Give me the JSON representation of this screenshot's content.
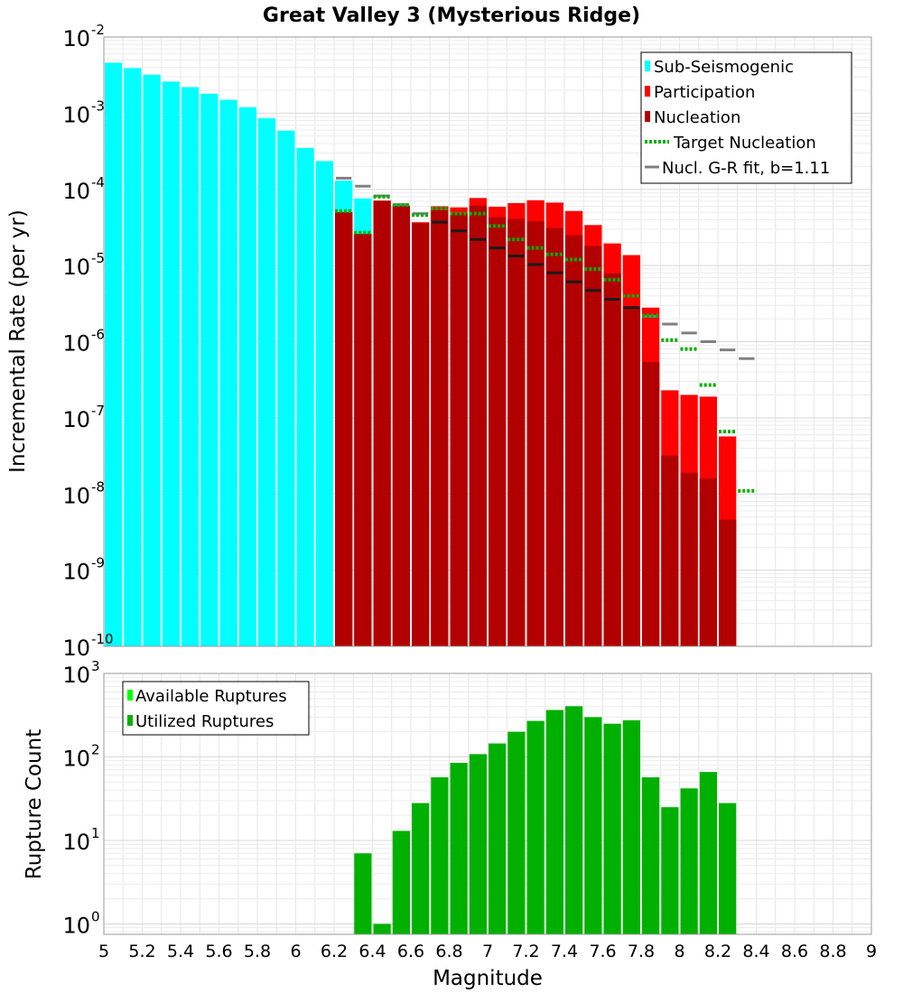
{
  "title": "Great Valley 3 (Mysterious Ridge)",
  "colors": {
    "sub_seismogenic": "#00ffff",
    "participation": "#ff0000",
    "nucleation": "#b20000",
    "target_nucleation": "#00b000",
    "gr_fit": "#808080",
    "available_ruptures": "#00ff00",
    "utilized_ruptures": "#00b000"
  },
  "chart_data": [
    {
      "type": "bar",
      "name": "rates",
      "title": "Great Valley 3 (Mysterious Ridge)",
      "ylabel": "Incremental Rate (per yr)",
      "xlabel": "",
      "yscale": "log",
      "xlim": [
        5,
        9
      ],
      "ylim": [
        1e-10,
        0.01
      ],
      "ytick_exponents": [
        -2,
        -3,
        -4,
        -5,
        -6,
        -7,
        -8,
        -9,
        -10
      ],
      "legend": {
        "position": "top-right",
        "entries": [
          "Sub-Seismogenic",
          "Participation",
          "Nucleation",
          "Target Nucleation",
          "Nucl. G-R fit, b=1.11"
        ]
      },
      "series": [
        {
          "name": "Sub-Seismogenic",
          "kind": "bar",
          "x": [
            5.0,
            5.1,
            5.2,
            5.3,
            5.4,
            5.5,
            5.6,
            5.7,
            5.8,
            5.9,
            6.0,
            6.1,
            6.2,
            6.3
          ],
          "values": [
            0.0046,
            0.0039,
            0.0032,
            0.0026,
            0.0022,
            0.0018,
            0.0015,
            0.0012,
            0.00086,
            0.00059,
            0.00035,
            0.000235,
            0.00013,
            7.6e-05
          ]
        },
        {
          "name": "Participation",
          "kind": "bar",
          "x": [
            6.2,
            6.3,
            6.4,
            6.5,
            6.6,
            6.7,
            6.8,
            6.9,
            7.0,
            7.1,
            7.2,
            7.3,
            7.4,
            7.5,
            7.6,
            7.7,
            7.8,
            7.9,
            8.0,
            8.1,
            8.2
          ],
          "values": [
            5e-05,
            2.6e-05,
            7.1e-05,
            6.1e-05,
            3.7e-05,
            6e-05,
            5.8e-05,
            7.7e-05,
            5.9e-05,
            6.6e-05,
            7.2e-05,
            6.7e-05,
            5.2e-05,
            3.4e-05,
            1.95e-05,
            1.37e-05,
            2.8e-06,
            2.3e-07,
            2e-07,
            1.9e-07,
            5.7e-08
          ]
        },
        {
          "name": "Nucleation",
          "kind": "bar",
          "x": [
            6.2,
            6.3,
            6.4,
            6.5,
            6.6,
            6.7,
            6.8,
            6.9,
            7.0,
            7.1,
            7.2,
            7.3,
            7.4,
            7.5,
            7.6,
            7.7,
            7.8,
            7.9,
            8.0,
            8.1,
            8.2
          ],
          "values": [
            5e-05,
            2.6e-05,
            7.1e-05,
            6.1e-05,
            3.6e-05,
            5.3e-05,
            4.8e-05,
            6.1e-05,
            4.3e-05,
            4.1e-05,
            3.8e-05,
            3.1e-05,
            2.5e-05,
            1.8e-05,
            7.9e-06,
            2.9e-06,
            5.4e-07,
            3.2e-08,
            1.9e-08,
            1.6e-08,
            4.6e-09
          ]
        },
        {
          "name": "Target Nucleation",
          "kind": "step-dotted",
          "x": [
            6.2,
            6.3,
            6.4,
            6.5,
            6.6,
            6.7,
            6.8,
            6.9,
            7.0,
            7.1,
            7.2,
            7.3,
            7.4,
            7.5,
            7.6,
            7.7,
            7.8,
            7.9,
            8.0,
            8.1,
            8.2,
            8.3
          ],
          "values": [
            5.2e-05,
            2.7e-05,
            8e-05,
            6.2e-05,
            4.6e-05,
            5.6e-05,
            4.8e-05,
            4.8e-05,
            3.3e-05,
            2.2e-05,
            1.7e-05,
            1.4e-05,
            1.2e-05,
            9e-06,
            6.5e-06,
            4e-06,
            2.2e-06,
            1.05e-06,
            8e-07,
            2.7e-07,
            6.6e-08,
            1.1e-08
          ]
        },
        {
          "name": "Nucl. G-R fit, b=1.11",
          "kind": "step",
          "x": [
            6.2,
            6.3,
            6.4,
            6.5,
            6.6,
            6.7,
            6.8,
            6.9,
            7.0,
            7.1,
            7.2,
            7.3,
            7.4,
            7.5,
            7.6,
            7.7,
            7.8,
            7.9,
            8.0,
            8.1,
            8.2,
            8.3
          ],
          "values": [
            0.00014,
            0.00011,
            8.2e-05,
            6.3e-05,
            4.8e-05,
            3.7e-05,
            2.85e-05,
            2.2e-05,
            1.7e-05,
            1.33e-05,
            1.03e-05,
            8e-06,
            6.1e-06,
            4.7e-06,
            3.6e-06,
            2.8e-06,
            2.15e-06,
            1.7e-06,
            1.3e-06,
            1e-06,
            7.8e-07,
            6e-07
          ]
        }
      ]
    },
    {
      "type": "bar",
      "name": "counts",
      "xlabel": "Magnitude",
      "ylabel": "Rupture Count",
      "yscale": "log",
      "xlim": [
        5,
        9
      ],
      "ylim": [
        0.75,
        1000
      ],
      "ytick_exponents": [
        3,
        2,
        1,
        0
      ],
      "xticks": [
        "5",
        "5.2",
        "5.4",
        "5.6",
        "5.8",
        "6",
        "6.2",
        "6.4",
        "6.6",
        "6.8",
        "7",
        "7.2",
        "7.4",
        "7.6",
        "7.8",
        "8",
        "8.2",
        "8.4",
        "8.6",
        "8.8",
        "9"
      ],
      "legend": {
        "position": "top-left",
        "entries": [
          "Available Ruptures",
          "Utilized Ruptures"
        ]
      },
      "series": [
        {
          "name": "Utilized Ruptures",
          "kind": "bar",
          "x": [
            6.3,
            6.4,
            6.5,
            6.6,
            6.7,
            6.8,
            6.9,
            7.0,
            7.1,
            7.2,
            7.3,
            7.4,
            7.5,
            7.6,
            7.7,
            7.8,
            7.9,
            8.0,
            8.1,
            8.2
          ],
          "values": [
            7,
            1,
            13,
            28,
            57,
            85,
            108,
            145,
            200,
            270,
            365,
            405,
            300,
            250,
            275,
            57,
            25,
            42,
            66,
            28
          ]
        }
      ]
    }
  ]
}
